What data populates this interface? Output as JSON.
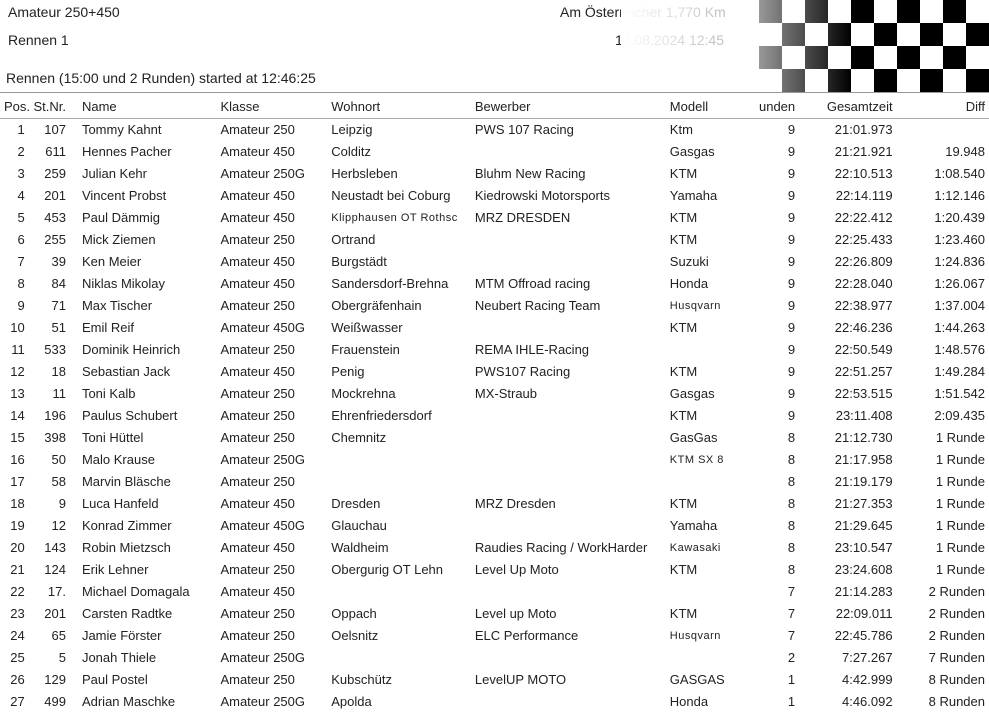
{
  "header": {
    "title": "Amateur 250+450",
    "race": "Rennen 1",
    "track": "Am Österreicher 1,770 Km",
    "datetime": "17.08.2024 12:45",
    "status": "Rennen (15:00 und 2 Runden) started at 12:46:25"
  },
  "columns": {
    "pos": "Pos.",
    "stnr": "St.Nr.",
    "name": "Name",
    "klasse": "Klasse",
    "wohnort": "Wohnort",
    "bewerber": "Bewerber",
    "modell": "Modell",
    "runden": "unden",
    "gesamtzeit": "Gesamtzeit",
    "diff": "Diff"
  },
  "rows": [
    {
      "pos": "1",
      "stnr": "107",
      "name": "Tommy Kahnt",
      "klasse": "Amateur 250",
      "wohnort": "Leipzig",
      "bewerber": "PWS 107 Racing",
      "modell": "Ktm",
      "runden": "9",
      "gesamt": "21:01.973",
      "diff": ""
    },
    {
      "pos": "2",
      "stnr": "611",
      "name": "Hennes Pacher",
      "klasse": "Amateur 450",
      "wohnort": "Colditz",
      "bewerber": "",
      "modell": "Gasgas",
      "runden": "9",
      "gesamt": "21:21.921",
      "diff": "19.948"
    },
    {
      "pos": "3",
      "stnr": "259",
      "name": "Julian Kehr",
      "klasse": "Amateur 250G",
      "wohnort": "Herbsleben",
      "bewerber": "Bluhm New Racing",
      "modell": "KTM",
      "runden": "9",
      "gesamt": "22:10.513",
      "diff": "1:08.540"
    },
    {
      "pos": "4",
      "stnr": "201",
      "name": "Vincent Probst",
      "klasse": "Amateur 450",
      "wohnort": "Neustadt bei Coburg",
      "bewerber": "Kiedrowski Motorsports",
      "modell": "Yamaha",
      "runden": "9",
      "gesamt": "22:14.119",
      "diff": "1:12.146"
    },
    {
      "pos": "5",
      "stnr": "453",
      "name": "Paul Dämmig",
      "klasse": "Amateur 450",
      "wohnort": "Klipphausen OT Rothsc",
      "wohnort_small": true,
      "bewerber": "MRZ DRESDEN",
      "modell": "KTM",
      "runden": "9",
      "gesamt": "22:22.412",
      "diff": "1:20.439"
    },
    {
      "pos": "6",
      "stnr": "255",
      "name": "Mick Ziemen",
      "klasse": "Amateur 250",
      "wohnort": "Ortrand",
      "bewerber": "",
      "modell": "KTM",
      "runden": "9",
      "gesamt": "22:25.433",
      "diff": "1:23.460"
    },
    {
      "pos": "7",
      "stnr": "39",
      "name": "Ken Meier",
      "klasse": "Amateur 450",
      "wohnort": "Burgstädt",
      "bewerber": "",
      "modell": "Suzuki",
      "runden": "9",
      "gesamt": "22:26.809",
      "diff": "1:24.836"
    },
    {
      "pos": "8",
      "stnr": "84",
      "name": "Niklas Mikolay",
      "klasse": "Amateur 450",
      "wohnort": "Sandersdorf-Brehna",
      "bewerber": "MTM Offroad racing",
      "modell": "Honda",
      "runden": "9",
      "gesamt": "22:28.040",
      "diff": "1:26.067"
    },
    {
      "pos": "9",
      "stnr": "71",
      "name": "Max Tischer",
      "klasse": "Amateur 250",
      "wohnort": "Obergräfenhain",
      "bewerber": "Neubert Racing Team",
      "modell": "Husqvarn",
      "modell_small": true,
      "runden": "9",
      "gesamt": "22:38.977",
      "diff": "1:37.004"
    },
    {
      "pos": "10",
      "stnr": "51",
      "name": "Emil Reif",
      "klasse": "Amateur 450G",
      "wohnort": "Weißwasser",
      "bewerber": "",
      "modell": "KTM",
      "runden": "9",
      "gesamt": "22:46.236",
      "diff": "1:44.263"
    },
    {
      "pos": "11",
      "stnr": "533",
      "name": "Dominik Heinrich",
      "klasse": "Amateur 250",
      "wohnort": "Frauenstein",
      "bewerber": "REMA IHLE-Racing",
      "modell": "",
      "runden": "9",
      "gesamt": "22:50.549",
      "diff": "1:48.576"
    },
    {
      "pos": "12",
      "stnr": "18",
      "name": "Sebastian Jack",
      "klasse": "Amateur 450",
      "wohnort": "Penig",
      "bewerber": "PWS107 Racing",
      "modell": "KTM",
      "runden": "9",
      "gesamt": "22:51.257",
      "diff": "1:49.284"
    },
    {
      "pos": "13",
      "stnr": "11",
      "name": "Toni Kalb",
      "klasse": "Amateur 250",
      "wohnort": "Mockrehna",
      "bewerber": "MX-Straub",
      "modell": "Gasgas",
      "runden": "9",
      "gesamt": "22:53.515",
      "diff": "1:51.542"
    },
    {
      "pos": "14",
      "stnr": "196",
      "name": "Paulus Schubert",
      "klasse": "Amateur 250",
      "wohnort": "Ehrenfriedersdorf",
      "bewerber": "",
      "modell": "KTM",
      "runden": "9",
      "gesamt": "23:11.408",
      "diff": "2:09.435"
    },
    {
      "pos": "15",
      "stnr": "398",
      "name": "Toni Hüttel",
      "klasse": "Amateur 250",
      "wohnort": "Chemnitz",
      "bewerber": "",
      "modell": "GasGas",
      "runden": "8",
      "gesamt": "21:12.730",
      "diff": "1 Runde"
    },
    {
      "pos": "16",
      "stnr": "50",
      "name": "Malo Krause",
      "klasse": "Amateur 250G",
      "wohnort": "",
      "bewerber": "",
      "modell": "KTM SX 8",
      "modell_small": true,
      "runden": "8",
      "gesamt": "21:17.958",
      "diff": "1 Runde"
    },
    {
      "pos": "17",
      "stnr": "58",
      "name": "Marvin Bläsche",
      "klasse": "Amateur 250",
      "wohnort": "",
      "bewerber": "",
      "modell": "",
      "runden": "8",
      "gesamt": "21:19.179",
      "diff": "1 Runde"
    },
    {
      "pos": "18",
      "stnr": "9",
      "name": "Luca Hanfeld",
      "klasse": "Amateur 450",
      "wohnort": "Dresden",
      "bewerber": "MRZ Dresden",
      "modell": "KTM",
      "runden": "8",
      "gesamt": "21:27.353",
      "diff": "1 Runde"
    },
    {
      "pos": "19",
      "stnr": "12",
      "name": "Konrad Zimmer",
      "klasse": "Amateur 450G",
      "wohnort": "Glauchau",
      "bewerber": "",
      "modell": "Yamaha",
      "runden": "8",
      "gesamt": "21:29.645",
      "diff": "1 Runde"
    },
    {
      "pos": "20",
      "stnr": "143",
      "name": "Robin Mietzsch",
      "klasse": "Amateur 450",
      "wohnort": "Waldheim",
      "bewerber": "Raudies Racing / WorkHarder",
      "modell": "Kawasaki",
      "modell_small": true,
      "runden": "8",
      "gesamt": "23:10.547",
      "diff": "1 Runde"
    },
    {
      "pos": "21",
      "stnr": "124",
      "name": "Erik Lehner",
      "klasse": "Amateur 250",
      "wohnort": "Obergurig OT Lehn",
      "bewerber": "Level Up Moto",
      "modell": "KTM",
      "runden": "8",
      "gesamt": "23:24.608",
      "diff": "1 Runde"
    },
    {
      "pos": "22",
      "stnr": "17.",
      "name": "Michael Domagala",
      "klasse": "Amateur 450",
      "wohnort": "",
      "bewerber": "",
      "modell": "",
      "runden": "7",
      "gesamt": "21:14.283",
      "diff": "2 Runden"
    },
    {
      "pos": "23",
      "stnr": "201",
      "name": "Carsten Radtke",
      "klasse": "Amateur 250",
      "wohnort": "Oppach",
      "bewerber": "Level up Moto",
      "modell": "KTM",
      "runden": "7",
      "gesamt": "22:09.011",
      "diff": "2 Runden"
    },
    {
      "pos": "24",
      "stnr": "65",
      "name": "Jamie Förster",
      "klasse": "Amateur 250",
      "wohnort": "Oelsnitz",
      "bewerber": "ELC Performance",
      "modell": "Husqvarn",
      "modell_small": true,
      "runden": "7",
      "gesamt": "22:45.786",
      "diff": "2 Runden"
    },
    {
      "pos": "25",
      "stnr": "5",
      "name": "Jonah Thiele",
      "klasse": "Amateur 250G",
      "wohnort": "",
      "bewerber": "",
      "modell": "",
      "runden": "2",
      "gesamt": "7:27.267",
      "diff": "7 Runden"
    },
    {
      "pos": "26",
      "stnr": "129",
      "name": "Paul Postel",
      "klasse": "Amateur 250",
      "wohnort": "Kubschütz",
      "bewerber": "LevelUP MOTO",
      "modell": "GASGAS",
      "runden": "1",
      "gesamt": "4:42.999",
      "diff": "8 Runden"
    },
    {
      "pos": "27",
      "stnr": "499",
      "name": "Adrian Maschke",
      "klasse": "Amateur 250G",
      "wohnort": "Apolda",
      "bewerber": "",
      "modell": "Honda",
      "runden": "1",
      "gesamt": "4:46.092",
      "diff": "8 Runden"
    }
  ]
}
